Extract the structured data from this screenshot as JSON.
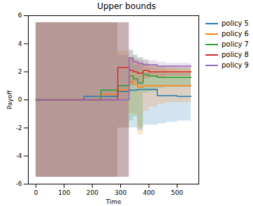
{
  "chart_data": {
    "type": "line",
    "title": "Upper bounds",
    "x_label": "Time",
    "y_label": "Payoff",
    "x": [
      0,
      170,
      230,
      290,
      330,
      345,
      360,
      380,
      400,
      430,
      460,
      500,
      550
    ],
    "series": [
      {
        "name": "policy 5",
        "color": "#1f77b4",
        "values": [
          0,
          0.25,
          0.25,
          0.6,
          0.7,
          0.7,
          0.75,
          0.75,
          0.75,
          0.3,
          0.3,
          0.25,
          0.25
        ],
        "lower": [
          -5.5,
          -5.5,
          -5.5,
          -2.0,
          -2.0,
          -2.0,
          -2.2,
          -1.8,
          -1.8,
          -1.7,
          -1.6,
          -1.5,
          -1.5
        ],
        "upper": [
          5.5,
          5.5,
          5.5,
          3.2,
          3.0,
          2.5,
          2.5,
          2.0,
          2.0,
          2.0,
          1.9,
          1.9,
          1.8
        ]
      },
      {
        "name": "policy 6",
        "color": "#ff7f0e",
        "values": [
          0,
          0,
          0.4,
          0.7,
          1.3,
          1.1,
          0.9,
          1.0,
          1.0,
          1.0,
          1.0,
          1.0,
          1.0
        ],
        "lower": [
          -5.5,
          -5.5,
          -5.5,
          -2.0,
          -1.0,
          -1.0,
          -2.5,
          -0.8,
          -0.5,
          -0.3,
          -0.2,
          -0.2,
          -0.2
        ],
        "upper": [
          5.5,
          5.5,
          5.5,
          3.5,
          3.0,
          2.8,
          2.6,
          2.5,
          2.3,
          2.2,
          2.2,
          2.1,
          2.1
        ]
      },
      {
        "name": "policy 7",
        "color": "#2ca02c",
        "values": [
          0,
          0,
          0.7,
          1.0,
          1.7,
          1.5,
          1.2,
          1.8,
          1.7,
          1.6,
          1.6,
          1.6,
          1.6
        ],
        "lower": [
          -5.5,
          -5.5,
          -5.5,
          -5.5,
          -1.5,
          -1.2,
          -2.0,
          0.5,
          0.6,
          0.8,
          0.9,
          0.9,
          1.0
        ],
        "upper": [
          5.5,
          5.5,
          5.5,
          5.5,
          3.5,
          3.2,
          3.0,
          2.8,
          2.5,
          2.4,
          2.3,
          2.3,
          2.2
        ]
      },
      {
        "name": "policy 8",
        "color": "#d62728",
        "values": [
          0,
          0,
          0,
          2.3,
          2.1,
          2.0,
          1.9,
          2.1,
          2.0,
          2.0,
          2.0,
          2.0,
          2.0
        ],
        "lower": [
          -5.5,
          -5.5,
          -5.5,
          -5.5,
          1.0,
          1.2,
          1.0,
          1.5,
          1.6,
          1.6,
          1.7,
          1.7,
          1.7
        ],
        "upper": [
          5.5,
          5.5,
          5.5,
          5.5,
          3.0,
          2.9,
          2.8,
          2.6,
          2.5,
          2.4,
          2.4,
          2.3,
          2.3
        ]
      },
      {
        "name": "policy 9",
        "color": "#9467bd",
        "values": [
          0,
          0,
          0,
          0,
          3.0,
          2.7,
          2.6,
          2.5,
          2.5,
          2.4,
          2.4,
          2.4,
          2.4
        ],
        "lower": [
          -5.5,
          -5.5,
          -5.5,
          -5.5,
          2.0,
          2.0,
          2.1,
          2.1,
          2.1,
          2.1,
          2.2,
          2.2,
          2.2
        ],
        "upper": [
          5.5,
          5.5,
          5.5,
          5.5,
          3.6,
          3.2,
          3.0,
          2.9,
          2.8,
          2.7,
          2.6,
          2.6,
          2.6
        ]
      }
    ],
    "xlim": [
      -27,
      577
    ],
    "xticks": [
      0,
      100,
      200,
      300,
      400,
      500
    ],
    "ylim": [
      -6,
      6
    ],
    "yticks": [
      -6,
      -4,
      -2,
      0,
      2,
      4,
      6
    ],
    "grid": false,
    "legend": "right",
    "line_style": "step"
  }
}
